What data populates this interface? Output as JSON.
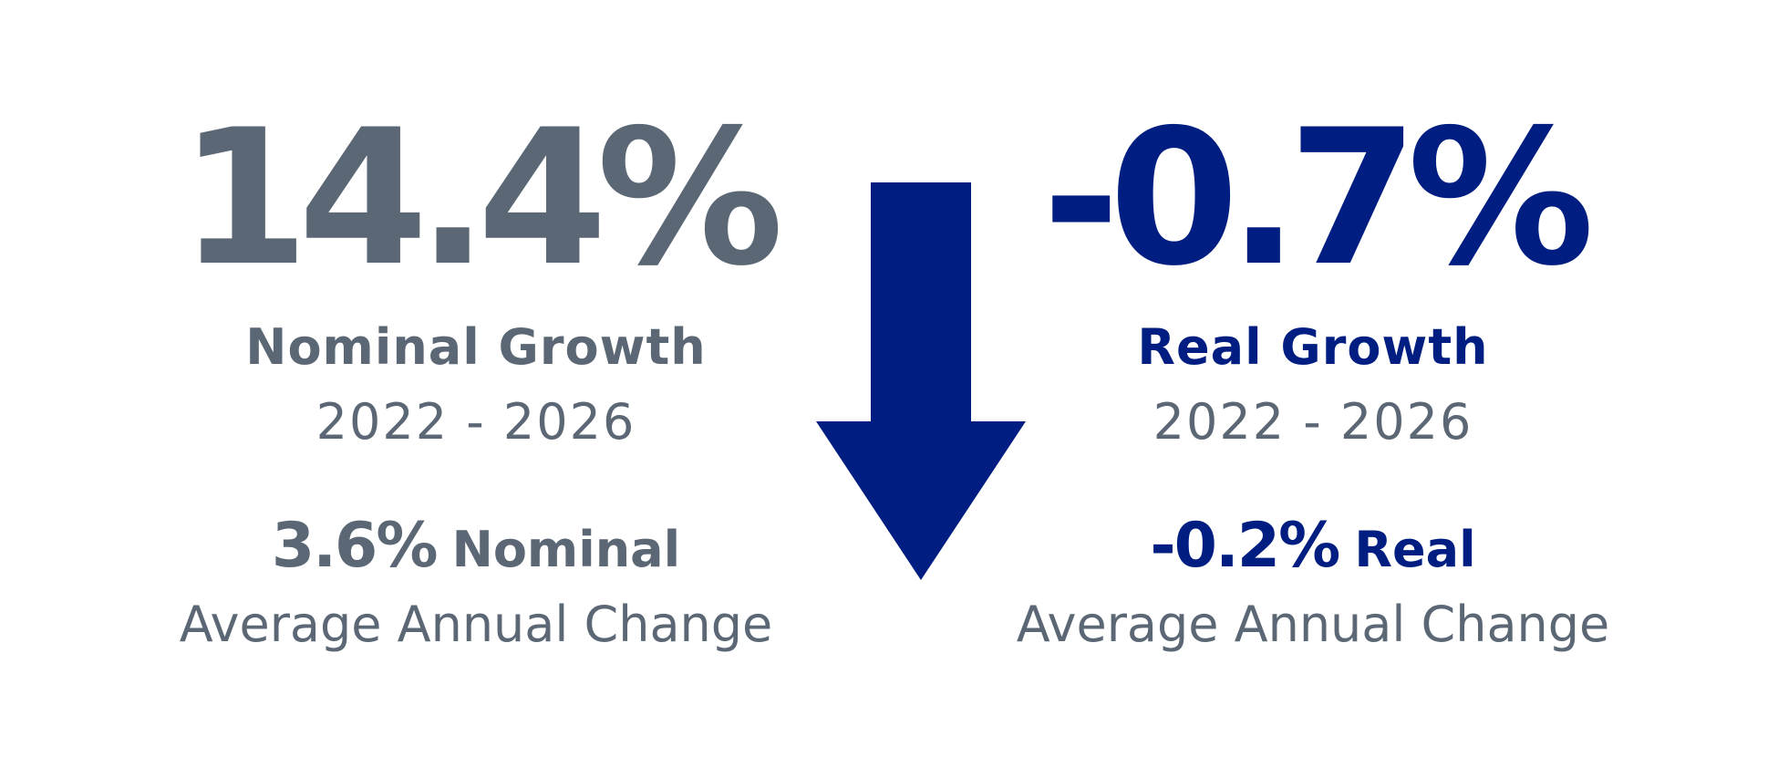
{
  "colors": {
    "nominal": "#5b6774",
    "real": "#001e82",
    "subtext": "#5b6774",
    "arrow": "#001e82"
  },
  "nominal": {
    "value": "14.4%",
    "label": "Nominal Growth",
    "years": "2022 - 2026",
    "avg_value": "3.6%",
    "avg_word": "Nominal",
    "avg_sub": "Average Annual Change"
  },
  "real": {
    "value": "-0.7%",
    "label": "Real Growth",
    "years": "2022 - 2026",
    "avg_value": "-0.2%",
    "avg_word": "Real",
    "avg_sub": "Average Annual Change"
  },
  "arrow_icon": "down-arrow-icon"
}
